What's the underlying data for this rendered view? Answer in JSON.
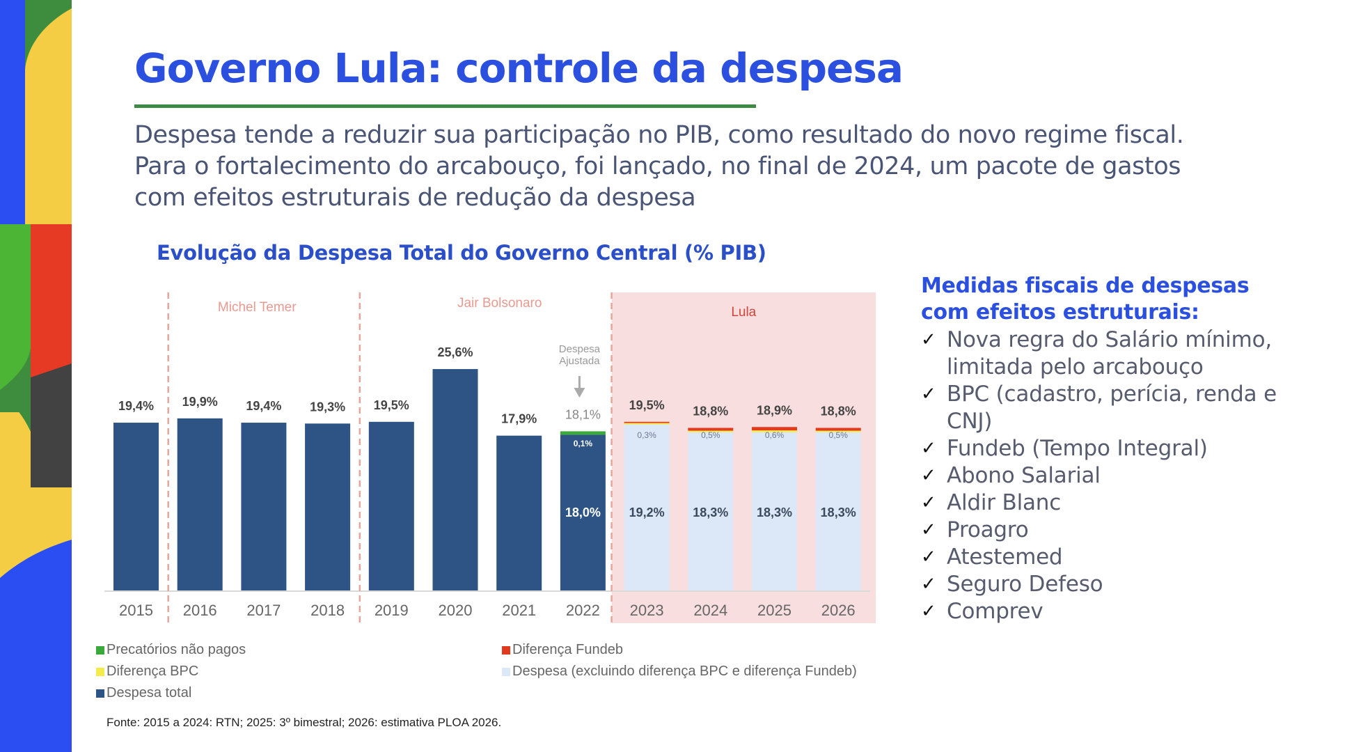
{
  "slide": {
    "title": "Governo Lula: controle da despesa",
    "subtitle_lines": [
      "Despesa tende a reduzir sua participação no PIB, como resultado do novo regime fiscal.",
      "Para o fortalecimento do arcabouço, foi lançado, no final de 2024, um pacote de gastos",
      "com efeitos estruturais de redução da despesa"
    ],
    "colors": {
      "title": "#2b50e0",
      "title_rule": "#3d8a44",
      "despesa_total": "#2d5484",
      "despesa_excl": "#dce7f8",
      "diferenca_bpc": "#f4ec4a",
      "diferenca_fundeb": "#e23a1e",
      "precatorios": "#3aa83a",
      "lula_region": "#f8dede",
      "government_label": "#e99a90",
      "divider": "#e5a79c"
    }
  },
  "chart_data": {
    "type": "bar",
    "title": "Evolução da Despesa Total do Governo Central (% PIB)",
    "xlabel": "",
    "ylabel": "% PIB",
    "ylim": [
      0,
      30
    ],
    "grid": false,
    "categories": [
      "2015",
      "2016",
      "2017",
      "2018",
      "2019",
      "2020",
      "2021",
      "2022",
      "2023",
      "2024",
      "2025",
      "2026"
    ],
    "series": [
      {
        "name": "Despesa  total",
        "values": [
          19.4,
          19.9,
          19.4,
          19.3,
          19.5,
          25.6,
          17.9,
          18.0,
          null,
          null,
          null,
          null
        ]
      },
      {
        "name": "Precatórios não pagos",
        "values": [
          null,
          null,
          null,
          null,
          null,
          null,
          null,
          0.1,
          null,
          null,
          null,
          null
        ]
      },
      {
        "name": "Despesa (excluindo diferença BPC e diferença Fundeb)",
        "values": [
          null,
          null,
          null,
          null,
          null,
          null,
          null,
          null,
          19.2,
          18.3,
          18.3,
          18.3
        ]
      },
      {
        "name": "Diferença BPC + Diferença Fundeb",
        "values": [
          null,
          null,
          null,
          null,
          null,
          null,
          null,
          null,
          0.3,
          0.5,
          0.6,
          0.5
        ]
      }
    ],
    "top_labels": [
      "19,4%",
      "19,9%",
      "19,4%",
      "19,3%",
      "19,5%",
      "25,6%",
      "17,9%",
      "18,1%",
      "19,5%",
      "18,8%",
      "18,9%",
      "18,8%"
    ],
    "inner_labels": {
      "2022": {
        "main": "18,0%",
        "top": "0,1%"
      },
      "2023": {
        "main": "19,2%",
        "top": "0,3%"
      },
      "2024": {
        "main": "18,3%",
        "top": "0,5%"
      },
      "2025": {
        "main": "18,3%",
        "top": "0,6%"
      },
      "2026": {
        "main": "18,3%",
        "top": "0,5%"
      }
    },
    "governments": [
      {
        "name": "Michel Temer",
        "years": [
          "2016",
          "2017",
          "2018"
        ]
      },
      {
        "name": "Jair Bolsonaro",
        "years": [
          "2019",
          "2020",
          "2021",
          "2022"
        ]
      },
      {
        "name": "Lula",
        "years": [
          "2023",
          "2024",
          "2025",
          "2026"
        ]
      }
    ],
    "annotation": {
      "text_lines": [
        "Despesa",
        "Ajustada"
      ],
      "target": "2022"
    },
    "legend": [
      {
        "label": "Precatórios não pagos",
        "color": "#3aa83a"
      },
      {
        "label": "Diferença Fundeb",
        "color": "#e23a1e"
      },
      {
        "label": "Diferença BPC",
        "color": "#f4ec4a"
      },
      {
        "label": "Despesa (excluindo diferença BPC e diferença Fundeb)",
        "color": "#dce7f8"
      },
      {
        "label": "Despesa  total",
        "color": "#2d5484"
      }
    ],
    "legend_position": "bottom"
  },
  "source": "Fonte: 2015 a 2024: RTN; 2025: 3º bimestral; 2026: estimativa PLOA 2026.",
  "side_panel": {
    "title_lines": [
      "Medidas fiscais de despesas",
      "com efeitos estruturais:"
    ],
    "check_icon": "✓",
    "items": [
      [
        "Nova regra do Salário mínimo,",
        "limitada pelo arcabouço"
      ],
      [
        "BPC (cadastro, perícia, renda e",
        "CNJ)"
      ],
      [
        "Fundeb (Tempo Integral)"
      ],
      [
        "Abono Salarial"
      ],
      [
        "Aldir Blanc"
      ],
      [
        "Proagro"
      ],
      [
        "Atestemed"
      ],
      [
        "Seguro Defeso"
      ],
      [
        "Comprev"
      ]
    ]
  }
}
